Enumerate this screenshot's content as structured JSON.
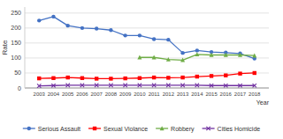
{
  "chart_data": {
    "type": "line",
    "x": [
      2003,
      2004,
      2005,
      2006,
      2007,
      2008,
      2009,
      2010,
      2011,
      2012,
      2013,
      2014,
      2015,
      2016,
      2017,
      2018
    ],
    "xlim": [
      2002,
      2019
    ],
    "xticks": [
      2003,
      2004,
      2005,
      2006,
      2007,
      2008,
      2009,
      2010,
      2011,
      2012,
      2013,
      2014,
      2015,
      2016,
      2017,
      2018
    ],
    "series": [
      {
        "name": "Serious Assault",
        "color": "#4472C4",
        "marker": "circle",
        "values": [
          225,
          238,
          208,
          200,
          198,
          193,
          175,
          175,
          163,
          161,
          117,
          125,
          120,
          118,
          115,
          98
        ]
      },
      {
        "name": "Sexual Violance",
        "color": "#FF0000",
        "marker": "square",
        "values": [
          32,
          33,
          35,
          33,
          31,
          31,
          32,
          33,
          35,
          34,
          35,
          38,
          40,
          42,
          48,
          50
        ]
      },
      {
        "name": "Robbery",
        "color": "#70AD47",
        "marker": "triangle",
        "values": [
          null,
          null,
          null,
          null,
          null,
          null,
          null,
          102,
          102,
          95,
          93,
          112,
          110,
          110,
          110,
          108
        ]
      },
      {
        "name": "Cities Homicide",
        "color": "#7030A0",
        "marker": "x",
        "values": [
          7,
          8,
          9,
          9,
          9,
          9,
          9,
          9,
          9,
          9,
          9,
          9,
          8,
          8,
          8,
          8
        ]
      }
    ],
    "ylim": [
      0,
      270
    ],
    "yticks": [
      0,
      50,
      100,
      150,
      200,
      250
    ],
    "ylabel": "Rate",
    "xlabel": "Year",
    "grid": true,
    "legend": "bottom"
  }
}
